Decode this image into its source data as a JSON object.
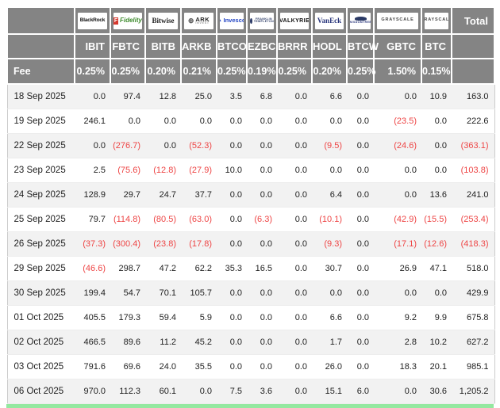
{
  "colors": {
    "header_bg": "#848484",
    "negative": "#ee4545",
    "row_stripe": "#f2f2f2",
    "bottom_strip": "#94e8a0"
  },
  "chart_data": {
    "type": "table",
    "fee_row_label": "Fee",
    "total_column_label": "Total",
    "columns": [
      {
        "issuer": "BlackRock",
        "logo_icon": "blackrock-logo",
        "logo_text": "BlackRock",
        "ticker": "IBIT",
        "fee": "0.25%"
      },
      {
        "issuer": "Fidelity",
        "logo_icon": "fidelity-logo",
        "logo_text": "Fidelity",
        "ticker": "FBTC",
        "fee": "0.25%"
      },
      {
        "issuer": "Bitwise",
        "logo_icon": "bitwise-logo",
        "logo_text": "Bitwise",
        "ticker": "BITB",
        "fee": "0.20%"
      },
      {
        "issuer": "ARK Invest",
        "logo_icon": "ark-invest-logo",
        "logo_text": "ARK INVEST",
        "ticker": "ARKB",
        "fee": "0.21%"
      },
      {
        "issuer": "Invesco",
        "logo_icon": "invesco-logo",
        "logo_text": "Invesco",
        "ticker": "BTCO",
        "fee": "0.25%"
      },
      {
        "issuer": "Franklin Templeton",
        "logo_icon": "franklin-templeton-logo",
        "logo_text": "FRANKLIN TEMPLETON",
        "ticker": "EZBC",
        "fee": "0.19%"
      },
      {
        "issuer": "Valkyrie",
        "logo_icon": "valkyrie-logo",
        "logo_text": "VALKYRIE",
        "ticker": "BRRR",
        "fee": "0.25%"
      },
      {
        "issuer": "VanEck",
        "logo_icon": "vaneck-logo",
        "logo_text": "VanEck",
        "ticker": "HODL",
        "fee": "0.20%"
      },
      {
        "issuer": "WisdomTree",
        "logo_icon": "wisdomtree-logo",
        "logo_text": "WISDOMTREE",
        "ticker": "BTCW",
        "fee": "0.25%"
      },
      {
        "issuer": "Grayscale",
        "logo_icon": "grayscale-logo",
        "logo_text": "GRAYSCALE",
        "ticker": "GBTC",
        "fee": "1.50%"
      },
      {
        "issuer": "Grayscale",
        "logo_icon": "grayscale-logo",
        "logo_text": "GRAYSCALE",
        "ticker": "BTC",
        "fee": "0.15%"
      }
    ],
    "rows": [
      {
        "date": "18 Sep 2025",
        "values": [
          "0.0",
          "97.4",
          "12.8",
          "25.0",
          "3.5",
          "6.8",
          "0.0",
          "6.6",
          "0.0",
          "0.0",
          "10.9"
        ],
        "total": "163.0"
      },
      {
        "date": "19 Sep 2025",
        "values": [
          "246.1",
          "0.0",
          "0.0",
          "0.0",
          "0.0",
          "0.0",
          "0.0",
          "0.0",
          "0.0",
          "(23.5)",
          "0.0"
        ],
        "total": "222.6"
      },
      {
        "date": "22 Sep 2025",
        "values": [
          "0.0",
          "(276.7)",
          "0.0",
          "(52.3)",
          "0.0",
          "0.0",
          "0.0",
          "(9.5)",
          "0.0",
          "(24.6)",
          "0.0"
        ],
        "total": "(363.1)"
      },
      {
        "date": "23 Sep 2025",
        "values": [
          "2.5",
          "(75.6)",
          "(12.8)",
          "(27.9)",
          "10.0",
          "0.0",
          "0.0",
          "0.0",
          "0.0",
          "0.0",
          "0.0"
        ],
        "total": "(103.8)"
      },
      {
        "date": "24 Sep 2025",
        "values": [
          "128.9",
          "29.7",
          "24.7",
          "37.7",
          "0.0",
          "0.0",
          "0.0",
          "6.4",
          "0.0",
          "0.0",
          "13.6"
        ],
        "total": "241.0"
      },
      {
        "date": "25 Sep 2025",
        "values": [
          "79.7",
          "(114.8)",
          "(80.5)",
          "(63.0)",
          "0.0",
          "(6.3)",
          "0.0",
          "(10.1)",
          "0.0",
          "(42.9)",
          "(15.5)"
        ],
        "total": "(253.4)"
      },
      {
        "date": "26 Sep 2025",
        "values": [
          "(37.3)",
          "(300.4)",
          "(23.8)",
          "(17.8)",
          "0.0",
          "0.0",
          "0.0",
          "(9.3)",
          "0.0",
          "(17.1)",
          "(12.6)"
        ],
        "total": "(418.3)"
      },
      {
        "date": "29 Sep 2025",
        "values": [
          "(46.6)",
          "298.7",
          "47.2",
          "62.2",
          "35.3",
          "16.5",
          "0.0",
          "30.7",
          "0.0",
          "26.9",
          "47.1"
        ],
        "total": "518.0"
      },
      {
        "date": "30 Sep 2025",
        "values": [
          "199.4",
          "54.7",
          "70.1",
          "105.7",
          "0.0",
          "0.0",
          "0.0",
          "0.0",
          "0.0",
          "0.0",
          "0.0"
        ],
        "total": "429.9"
      },
      {
        "date": "01 Oct 2025",
        "values": [
          "405.5",
          "179.3",
          "59.4",
          "5.9",
          "0.0",
          "0.0",
          "0.0",
          "6.6",
          "0.0",
          "9.2",
          "9.9"
        ],
        "total": "675.8"
      },
      {
        "date": "02 Oct 2025",
        "values": [
          "466.5",
          "89.6",
          "11.2",
          "45.2",
          "0.0",
          "0.0",
          "0.0",
          "1.7",
          "0.0",
          "2.8",
          "10.2"
        ],
        "total": "627.2"
      },
      {
        "date": "03 Oct 2025",
        "values": [
          "791.6",
          "69.6",
          "24.0",
          "35.5",
          "0.0",
          "0.0",
          "0.0",
          "26.0",
          "0.0",
          "18.3",
          "20.1"
        ],
        "total": "985.1"
      },
      {
        "date": "06 Oct 2025",
        "values": [
          "970.0",
          "112.3",
          "60.1",
          "0.0",
          "7.5",
          "3.6",
          "0.0",
          "15.1",
          "6.0",
          "0.0",
          "30.6"
        ],
        "total": "1,205.2"
      }
    ]
  }
}
